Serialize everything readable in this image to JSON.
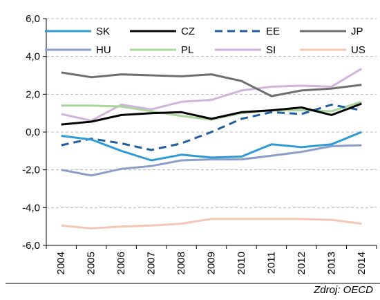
{
  "source": "Zdroj: OECD",
  "chart_data": {
    "type": "line",
    "title": "",
    "xlabel": "",
    "ylabel": "",
    "ylim": [
      -6,
      6
    ],
    "yticks": [
      -6,
      -4,
      -2,
      0,
      2,
      4,
      6
    ],
    "ytick_labels": [
      "-6,0",
      "-4,0",
      "-2,0",
      "0,0",
      "2,0",
      "4,0",
      "6,0"
    ],
    "grid": "horizontal dashed",
    "legend": "top",
    "x": [
      "2004",
      "2005",
      "2006",
      "2007",
      "2008",
      "2009",
      "2010",
      "2011",
      "2012",
      "2013",
      "2014"
    ],
    "series": [
      {
        "name": "SK",
        "color": "#2e9bd6",
        "dash": "solid",
        "width": 3,
        "values": [
          -0.2,
          -0.4,
          -1.0,
          -1.5,
          -1.2,
          -1.35,
          -1.3,
          -0.65,
          -0.8,
          -0.65,
          0.0
        ]
      },
      {
        "name": "CZ",
        "color": "#000000",
        "dash": "solid",
        "width": 3,
        "values": [
          0.4,
          0.55,
          0.9,
          1.0,
          1.05,
          0.7,
          1.05,
          1.15,
          1.3,
          0.9,
          1.5
        ]
      },
      {
        "name": "EE",
        "color": "#1f5fa0",
        "dash": "dashed",
        "width": 3,
        "values": [
          -0.7,
          -0.35,
          -0.6,
          -0.95,
          -0.6,
          0.0,
          0.7,
          1.05,
          0.95,
          1.45,
          1.15
        ]
      },
      {
        "name": "JP",
        "color": "#6e6e6e",
        "dash": "solid",
        "width": 3,
        "values": [
          3.15,
          2.9,
          3.05,
          3.0,
          2.95,
          3.05,
          2.7,
          1.9,
          2.2,
          2.3,
          2.5
        ]
      },
      {
        "name": "HU",
        "color": "#8b9dc9",
        "dash": "solid",
        "width": 3,
        "values": [
          -2.0,
          -2.3,
          -1.95,
          -1.8,
          -1.5,
          -1.45,
          -1.45,
          -1.25,
          -1.05,
          -0.75,
          -0.7
        ]
      },
      {
        "name": "PL",
        "color": "#a9d69a",
        "dash": "solid",
        "width": 3,
        "values": [
          1.4,
          1.4,
          1.35,
          1.1,
          0.85,
          0.65,
          1.0,
          1.15,
          1.15,
          1.1,
          1.6
        ]
      },
      {
        "name": "SI",
        "color": "#d2b3dc",
        "dash": "solid",
        "width": 3,
        "values": [
          0.95,
          0.6,
          1.45,
          1.2,
          1.6,
          1.7,
          2.2,
          2.4,
          2.45,
          2.4,
          3.35
        ]
      },
      {
        "name": "US",
        "color": "#f5c6b4",
        "dash": "solid",
        "width": 3,
        "values": [
          -4.95,
          -5.1,
          -5.0,
          -4.95,
          -4.85,
          -4.6,
          -4.6,
          -4.6,
          -4.6,
          -4.65,
          -4.85
        ]
      }
    ]
  }
}
